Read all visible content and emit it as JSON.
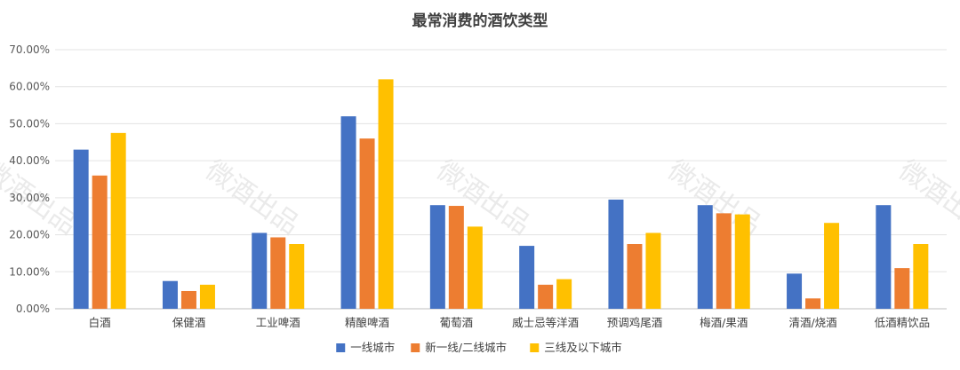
{
  "chart_data": {
    "type": "bar",
    "title": "最常消费的酒饮类型",
    "xlabel": "",
    "ylabel": "",
    "ylim": [
      0,
      0.7
    ],
    "yticks": [
      0,
      0.1,
      0.2,
      0.3,
      0.4,
      0.5,
      0.6,
      0.7
    ],
    "ytick_labels": [
      "0.00%",
      "10.00%",
      "20.00%",
      "30.00%",
      "40.00%",
      "50.00%",
      "60.00%",
      "70.00%"
    ],
    "grid": true,
    "legend_position": "bottom",
    "categories": [
      "白酒",
      "保健酒",
      "工业啤酒",
      "精酿啤酒",
      "葡萄酒",
      "威士忌等洋酒",
      "预调鸡尾酒",
      "梅酒/果酒",
      "清酒/烧酒",
      "低酒精饮品"
    ],
    "series": [
      {
        "name": "一线城市",
        "color": "#4472c4",
        "values": [
          0.43,
          0.075,
          0.205,
          0.52,
          0.28,
          0.17,
          0.295,
          0.28,
          0.095,
          0.28
        ]
      },
      {
        "name": "新一线/二线城市",
        "color": "#ed7d31",
        "values": [
          0.36,
          0.048,
          0.193,
          0.46,
          0.278,
          0.065,
          0.175,
          0.258,
          0.028,
          0.11
        ]
      },
      {
        "name": "三线及以下城市",
        "color": "#ffc000",
        "values": [
          0.475,
          0.065,
          0.175,
          0.62,
          0.222,
          0.08,
          0.205,
          0.255,
          0.232,
          0.175
        ]
      }
    ],
    "watermark": "微酒出品"
  }
}
